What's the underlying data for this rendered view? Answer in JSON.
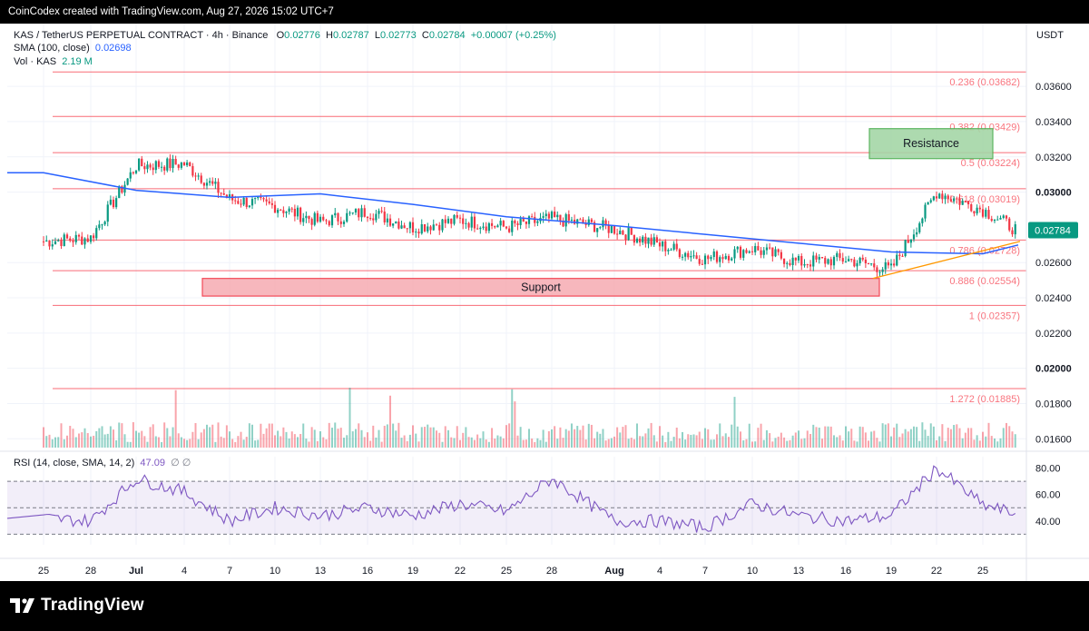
{
  "header": {
    "credit": "CoinCodex created with TradingView.com, Aug 27, 2026 15:02 UTC+7"
  },
  "legend": {
    "symbol": "KAS / TetherUS PERPETUAL CONTRACT · 4h · Binance",
    "o_label": "O",
    "o_value": "0.02776",
    "h_label": "H",
    "h_value": "0.02787",
    "l_label": "L",
    "l_value": "0.02773",
    "c_label": "C",
    "c_value": "0.02784",
    "change": "+0.00007 (+0.25%)",
    "sma_label": "SMA (100, close)",
    "sma_value": "0.02698",
    "vol_label": "Vol · KAS",
    "vol_value": "2.19 M",
    "rsi_label": "RSI (14, close, SMA, 14, 2)",
    "rsi_value": "47.09",
    "rsi_extra": "∅ ∅"
  },
  "currency": "USDT",
  "branding": {
    "name": "TradingView"
  },
  "colors": {
    "up": "#089981",
    "down": "#f23645",
    "sma": "#2962ff",
    "rsi": "#7e57c2",
    "fib": "#f7525f",
    "support_fill": "#f7b0b6",
    "resistance_fill": "#a5d6a7",
    "trendline": "#ff9800"
  },
  "chart_data": [
    {
      "type": "line",
      "subtype": "candlestick",
      "title": "KAS / TetherUS PERPETUAL CONTRACT · 4h · Binance",
      "y_axis_ticks": [
        "0.03600",
        "0.03400",
        "0.03200",
        "0.03000",
        "0.02600",
        "0.02400",
        "0.02200",
        "0.02000",
        "0.01800",
        "0.01600"
      ],
      "ylim": [
        0.0155,
        0.0375
      ],
      "x_axis_ticks": [
        "25",
        "28",
        "Jul",
        "4",
        "7",
        "10",
        "13",
        "16",
        "19",
        "22",
        "25",
        "28",
        "Aug",
        "4",
        "7",
        "10",
        "13",
        "16",
        "19",
        "22",
        "25"
      ],
      "last_price": "0.02784",
      "series": [
        {
          "name": "close (approx.)",
          "x": [
            "25",
            "28",
            "Jul",
            "4",
            "7",
            "10",
            "13",
            "16",
            "19",
            "22",
            "25",
            "28",
            "Aug",
            "4",
            "7",
            "10",
            "13",
            "16",
            "19",
            "22",
            "25",
            "27"
          ],
          "values": [
            0.0272,
            0.0274,
            0.0315,
            0.0316,
            0.0296,
            0.0292,
            0.0283,
            0.0289,
            0.028,
            0.0284,
            0.028,
            0.0285,
            0.0279,
            0.027,
            0.0262,
            0.0268,
            0.026,
            0.0262,
            0.0256,
            0.03,
            0.029,
            0.0278
          ]
        },
        {
          "name": "SMA (100, close)",
          "x": [
            "25",
            "Jul",
            "7",
            "13",
            "19",
            "25",
            "Aug",
            "7",
            "13",
            "19",
            "25",
            "27"
          ],
          "values": [
            0.0311,
            0.0301,
            0.0297,
            0.0299,
            0.0293,
            0.0286,
            0.0281,
            0.0276,
            0.0271,
            0.0266,
            0.0265,
            0.027
          ]
        }
      ],
      "fibonacci": [
        {
          "label": "0.236 (0.03682)",
          "value": 0.03682
        },
        {
          "label": "0.382 (0.03429)",
          "value": 0.03429
        },
        {
          "label": "0.5 (0.03224)",
          "value": 0.03224
        },
        {
          "label": "0.618 (0.03019)",
          "value": 0.03019
        },
        {
          "label": "0.786 (0.02728)",
          "value": 0.02728
        },
        {
          "label": "0.886 (0.02554)",
          "value": 0.02554
        },
        {
          "label": "1 (0.02357)",
          "value": 0.02357
        },
        {
          "label": "1.272 (0.01885)",
          "value": 0.01885
        }
      ],
      "zones": [
        {
          "label": "Resistance",
          "from": 0.0319,
          "to": 0.0336
        },
        {
          "label": "Support",
          "from": 0.0241,
          "to": 0.0251
        }
      ]
    },
    {
      "type": "line",
      "title": "RSI (14, close, SMA, 14, 2)",
      "y_axis_ticks": [
        "80.00",
        "60.00",
        "40.00"
      ],
      "ylim": [
        20,
        90
      ],
      "bands": [
        70,
        50,
        30
      ],
      "current": 47.09,
      "series": [
        {
          "name": "RSI",
          "x": [
            "25",
            "28",
            "Jul",
            "4",
            "7",
            "10",
            "13",
            "16",
            "19",
            "22",
            "25",
            "28",
            "Aug",
            "4",
            "7",
            "10",
            "13",
            "16",
            "19",
            "22",
            "25",
            "27"
          ],
          "values": [
            42,
            40,
            72,
            62,
            40,
            50,
            44,
            50,
            44,
            53,
            47,
            72,
            40,
            40,
            35,
            53,
            44,
            40,
            44,
            80,
            52,
            45
          ]
        }
      ]
    }
  ]
}
